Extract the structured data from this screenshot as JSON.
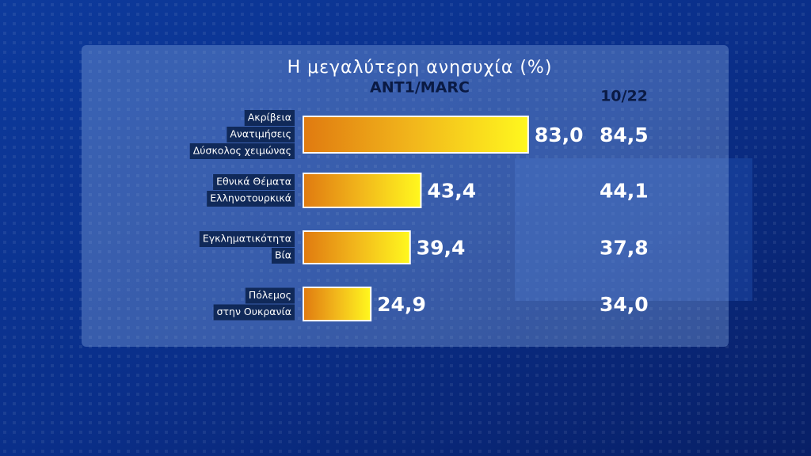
{
  "chart_data": {
    "type": "bar",
    "title": "Η μεγαλύτερη ανησυχία (%)",
    "subtitle": "ANT1/MARC",
    "categories": [
      [
        "Ακρίβεια",
        "Ανατιμήσεις",
        "Δύσκολος χειμώνας"
      ],
      [
        "Εθνικά Θέματα",
        "Ελληνοτουρκικά"
      ],
      [
        "Εγκληματικότητα",
        "Βία"
      ],
      [
        "Πόλεμος",
        "στην Ουκρανία"
      ]
    ],
    "values": [
      83.0,
      43.4,
      39.4,
      24.9
    ],
    "value_labels": [
      "83,0",
      "43,4",
      "39,4",
      "24,9"
    ],
    "comparison": {
      "name": "10/22",
      "values": [
        84.5,
        44.1,
        37.8,
        34.0
      ],
      "value_labels": [
        "84,5",
        "44,1",
        "37,8",
        "34,0"
      ]
    }
  }
}
